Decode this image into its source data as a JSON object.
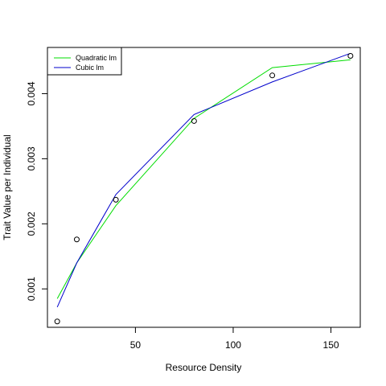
{
  "chart_data": {
    "type": "scatter",
    "title": "",
    "xlabel": "Resource Density",
    "ylabel": "Trait Value per Individual",
    "xlim": [
      5,
      165
    ],
    "ylim": [
      0.00041,
      0.00471
    ],
    "x_ticks": [
      50,
      100,
      150
    ],
    "x_tick_labels": [
      "50",
      "100",
      "150"
    ],
    "y_ticks": [
      0.001,
      0.002,
      0.003,
      0.004
    ],
    "y_tick_labels": [
      "0.001",
      "0.002",
      "0.003",
      "0.004"
    ],
    "grid": false,
    "legend_position": "top-left",
    "points": {
      "x": [
        10,
        20,
        40,
        80,
        120,
        160
      ],
      "y": [
        0.0005,
        0.00176,
        0.00237,
        0.00358,
        0.00428,
        0.00458
      ]
    },
    "series": [
      {
        "name": "Quadratic lm",
        "color": "#00dd00",
        "x": [
          10,
          20,
          40,
          80,
          120,
          160
        ],
        "y": [
          0.00085,
          0.0014,
          0.00228,
          0.00362,
          0.0044,
          0.00452
        ]
      },
      {
        "name": "Cubic lm",
        "color": "#0000cc",
        "x": [
          10,
          20,
          40,
          80,
          120,
          160
        ],
        "y": [
          0.00072,
          0.0014,
          0.00245,
          0.00368,
          0.00418,
          0.00462
        ]
      }
    ]
  }
}
